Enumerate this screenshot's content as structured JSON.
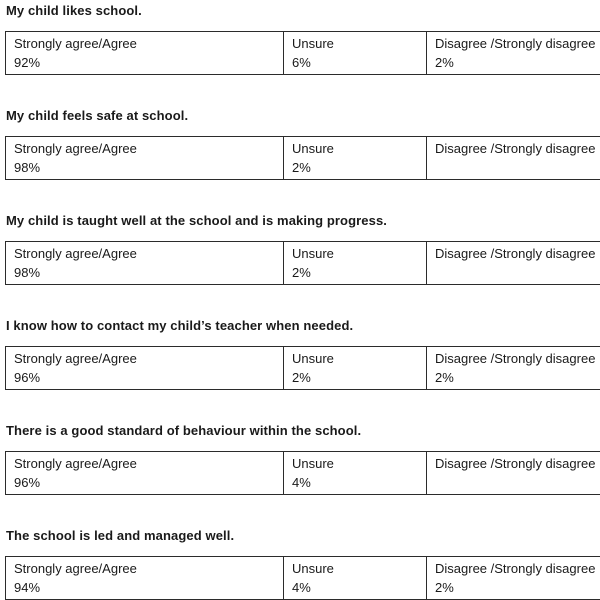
{
  "page": {
    "background": "#ffffff",
    "text_color": "#1a1a1a",
    "border_color": "#2b2b2b"
  },
  "columns": {
    "agree": "Strongly agree/Agree",
    "unsure": "Unsure",
    "disagree": "Disagree /Strongly disagree"
  },
  "sections": [
    {
      "heading": "My child likes school.",
      "values": {
        "agree": "92%",
        "unsure": "6%",
        "disagree": "2%"
      }
    },
    {
      "heading": "My child feels safe at school.",
      "values": {
        "agree": "98%",
        "unsure": "2%",
        "disagree": ""
      }
    },
    {
      "heading": "My child is taught well at the school and is making progress.",
      "values": {
        "agree": "98%",
        "unsure": "2%",
        "disagree": ""
      }
    },
    {
      "heading": "I know how to contact my child’s teacher when needed.",
      "values": {
        "agree": "96%",
        "unsure": "2%",
        "disagree": "2%"
      }
    },
    {
      "heading": "There is a good standard of behaviour within the school.",
      "values": {
        "agree": "96%",
        "unsure": "4%",
        "disagree": ""
      }
    },
    {
      "heading": "The school is led and managed well.",
      "values": {
        "agree": "94%",
        "unsure": "4%",
        "disagree": "2%"
      }
    }
  ]
}
